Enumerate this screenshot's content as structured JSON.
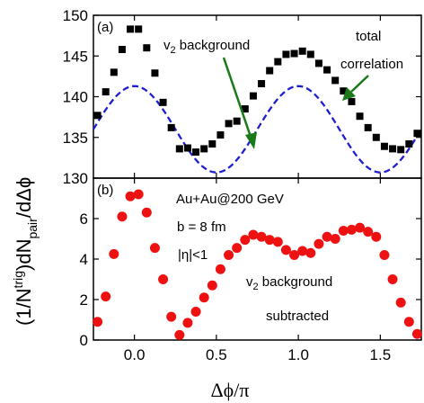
{
  "chart_data": [
    {
      "panel_label": "(a)",
      "type": "scatter",
      "xlim": [
        -0.25,
        1.75
      ],
      "ylim": [
        130,
        150
      ],
      "yticks": [
        130,
        135,
        140,
        145,
        150
      ],
      "annotations": {
        "v2_background": {
          "main": "v",
          "sub": "2",
          "rest": " background"
        },
        "total_line1": "total",
        "total_line2": "correlation"
      },
      "series": [
        {
          "marker": "square",
          "color": "#000000",
          "x": [
            -0.225,
            -0.175,
            -0.125,
            -0.075,
            -0.025,
            0.025,
            0.075,
            0.125,
            0.175,
            0.225,
            0.275,
            0.325,
            0.375,
            0.425,
            0.475,
            0.525,
            0.575,
            0.625,
            0.675,
            0.725,
            0.775,
            0.825,
            0.875,
            0.925,
            0.975,
            1.025,
            1.075,
            1.125,
            1.175,
            1.225,
            1.275,
            1.325,
            1.375,
            1.425,
            1.475,
            1.525,
            1.575,
            1.625,
            1.675,
            1.725
          ],
          "y": [
            137.7,
            140.6,
            143.0,
            145.8,
            148.3,
            148.3,
            146.0,
            142.9,
            139.3,
            136.2,
            133.6,
            133.7,
            133.2,
            133.6,
            134.2,
            135.3,
            136.7,
            137.0,
            138.5,
            140.1,
            141.6,
            143.2,
            144.3,
            145.2,
            145.3,
            145.6,
            145.2,
            144.1,
            143.3,
            142.0,
            140.7,
            139.4,
            137.6,
            136.2,
            135.0,
            133.9,
            133.6,
            133.5,
            134.2,
            135.5
          ]
        },
        {
          "line": "dashed",
          "color": "#1f1fd1",
          "formula": "136 + 5.3*cos(2*pi*dphi)"
        }
      ]
    },
    {
      "panel_label": "(b)",
      "type": "scatter",
      "xlim": [
        -0.25,
        1.75
      ],
      "ylim": [
        0,
        8
      ],
      "yticks": [
        0,
        2,
        4,
        6
      ],
      "xticks": [
        "0.0",
        "0.5",
        "1.0",
        "1.5"
      ],
      "annotations": {
        "system": "Au+Au@200 GeV",
        "impact": "b = 8 fm",
        "eta": "|η|<1",
        "v2_label": {
          "main": "v",
          "sub": "2",
          "rest": " background"
        },
        "subtracted": "subtracted"
      },
      "series": [
        {
          "marker": "circle",
          "color": "#ee1111",
          "x": [
            -0.225,
            -0.175,
            -0.125,
            -0.075,
            -0.025,
            0.025,
            0.075,
            0.125,
            0.175,
            0.225,
            0.275,
            0.325,
            0.375,
            0.425,
            0.475,
            0.525,
            0.575,
            0.625,
            0.675,
            0.725,
            0.775,
            0.825,
            0.875,
            0.925,
            0.975,
            1.025,
            1.075,
            1.125,
            1.175,
            1.225,
            1.275,
            1.325,
            1.375,
            1.425,
            1.475,
            1.525,
            1.575,
            1.625,
            1.675,
            1.725
          ],
          "y": [
            0.9,
            2.15,
            4.25,
            6.1,
            7.1,
            7.2,
            6.3,
            4.55,
            3.0,
            1.15,
            0.25,
            0.85,
            1.4,
            2.1,
            2.7,
            3.5,
            4.2,
            4.55,
            4.95,
            5.2,
            5.1,
            4.95,
            4.85,
            4.45,
            4.2,
            4.4,
            4.3,
            4.75,
            5.1,
            5.0,
            5.4,
            5.45,
            5.55,
            5.35,
            5.1,
            4.2,
            3.0,
            1.85,
            0.9,
            0.3
          ]
        }
      ]
    }
  ],
  "axes": {
    "ylabel": {
      "p1": "(1/N",
      "sup": "trig",
      "p2": ")dN",
      "sub": "pair",
      "p3": "/d",
      "p4": "Δϕ"
    },
    "xlabel": {
      "p1": "Δϕ/π"
    }
  }
}
